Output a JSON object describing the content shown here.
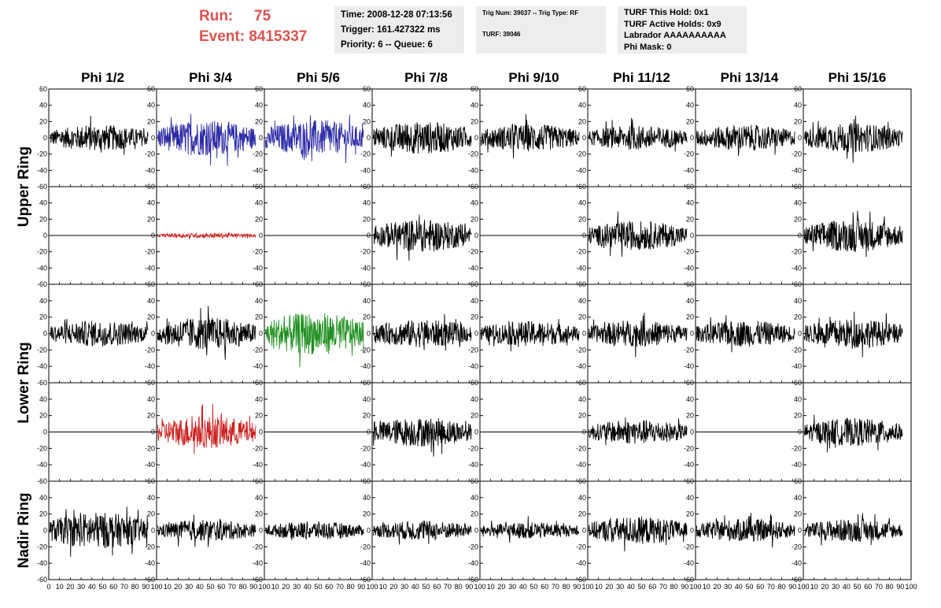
{
  "header": {
    "run_label": "Run:",
    "run_value": "75",
    "event_label": "Event:",
    "event_value": "8415337",
    "time": "Time: 2008-12-28 07:13:56",
    "trigger": "Trigger: 161.427322 ms",
    "priority": "Priority: 6 -- Queue: 6",
    "trig_num": "Trig Num: 39037 -- Trig Type: RF",
    "turf": "TURF: 39046",
    "turf_hold": "TURF This Hold: 0x1",
    "turf_active": "TURF Active Holds: 0x9",
    "labrador": "Labrador AAAAAAAAAA",
    "phi_mask": "Phi Mask: 0"
  },
  "chart_data": {
    "type": "line",
    "columns": [
      "Phi 1/2",
      "Phi 3/4",
      "Phi 5/6",
      "Phi 7/8",
      "Phi 9/10",
      "Phi 11/12",
      "Phi 13/14",
      "Phi 15/16"
    ],
    "ring_labels": [
      "Upper Ring",
      "Lower Ring",
      "Nadir Ring"
    ],
    "ylim": [
      -60,
      60
    ],
    "xlim": [
      0,
      100
    ],
    "y_ticks": [
      -60,
      -40,
      -20,
      0,
      20,
      40,
      60
    ],
    "x_ticks": [
      0,
      10,
      20,
      30,
      40,
      50,
      60,
      70,
      80,
      90,
      100
    ],
    "rows": [
      {
        "ring": "Upper Ring",
        "colors": [
          "#000000",
          "#2b2ba6",
          "#2b2ba6",
          "#000000",
          "#000000",
          "#000000",
          "#000000",
          "#000000"
        ],
        "amp": [
          16,
          22,
          22,
          20,
          17,
          15,
          16,
          18
        ]
      },
      {
        "ring": "Upper Ring",
        "colors": [
          "#000000",
          "#cc2222",
          "#000000",
          "#000000",
          "#000000",
          "#000000",
          "#000000",
          "#000000"
        ],
        "amp": [
          0,
          3,
          0,
          20,
          0,
          18,
          0,
          20
        ]
      },
      {
        "ring": "Lower Ring",
        "colors": [
          "#000000",
          "#000000",
          "#1f8f1f",
          "#000000",
          "#000000",
          "#000000",
          "#000000",
          "#000000"
        ],
        "amp": [
          16,
          20,
          26,
          17,
          15,
          16,
          16,
          18
        ]
      },
      {
        "ring": "Lower Ring",
        "colors": [
          "#000000",
          "#cc2222",
          "#000000",
          "#000000",
          "#000000",
          "#000000",
          "#000000",
          "#000000"
        ],
        "amp": [
          0,
          20,
          0,
          18,
          0,
          15,
          0,
          17
        ]
      },
      {
        "ring": "Nadir Ring",
        "colors": [
          "#000000",
          "#000000",
          "#000000",
          "#000000",
          "#000000",
          "#000000",
          "#000000",
          "#000000"
        ],
        "amp": [
          22,
          13,
          11,
          12,
          10,
          17,
          14,
          14
        ]
      }
    ]
  }
}
